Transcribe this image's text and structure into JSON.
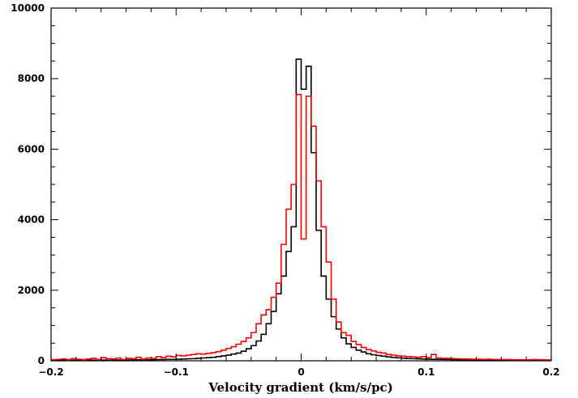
{
  "chart_data": {
    "type": "line",
    "title": "",
    "xlabel": "Velocity gradient (km/s/pc)",
    "ylabel": "",
    "xlim": [
      -0.2,
      0.2
    ],
    "ylim": [
      0,
      10000
    ],
    "x_ticks": [
      -0.2,
      -0.1,
      0,
      0.1,
      0.2
    ],
    "x_tick_labels": [
      "−0.2",
      "−0.1",
      "0",
      "0.1",
      "0.2"
    ],
    "y_ticks": [
      0,
      2000,
      4000,
      6000,
      8000,
      10000
    ],
    "y_tick_labels": [
      "0",
      "2000",
      "4000",
      "6000",
      "8000",
      "10000"
    ],
    "grid": false,
    "legend": "none",
    "bin_width": 0.004,
    "series": [
      {
        "color": "#000000",
        "x": [
          -0.2,
          -0.196,
          -0.192,
          -0.188,
          -0.184,
          -0.18,
          -0.176,
          -0.172,
          -0.168,
          -0.164,
          -0.16,
          -0.156,
          -0.152,
          -0.148,
          -0.144,
          -0.14,
          -0.136,
          -0.132,
          -0.128,
          -0.124,
          -0.12,
          -0.116,
          -0.112,
          -0.108,
          -0.104,
          -0.1,
          -0.096,
          -0.092,
          -0.088,
          -0.084,
          -0.08,
          -0.076,
          -0.072,
          -0.068,
          -0.064,
          -0.06,
          -0.056,
          -0.052,
          -0.048,
          -0.044,
          -0.04,
          -0.036,
          -0.032,
          -0.028,
          -0.024,
          -0.02,
          -0.016,
          -0.012,
          -0.008,
          -0.004,
          0,
          0.004,
          0.008,
          0.012,
          0.016,
          0.02,
          0.024,
          0.028,
          0.032,
          0.036,
          0.04,
          0.044,
          0.048,
          0.052,
          0.056,
          0.06,
          0.064,
          0.068,
          0.072,
          0.076,
          0.08,
          0.084,
          0.088,
          0.092,
          0.096,
          0.1,
          0.104,
          0.108,
          0.112,
          0.116,
          0.12,
          0.124,
          0.128,
          0.132,
          0.136,
          0.14,
          0.144,
          0.148,
          0.152,
          0.156,
          0.16,
          0.164,
          0.168,
          0.172,
          0.176,
          0.18,
          0.184,
          0.188,
          0.192,
          0.196
        ],
        "values": [
          15,
          15,
          15,
          15,
          15,
          15,
          20,
          20,
          20,
          20,
          20,
          20,
          20,
          25,
          25,
          25,
          25,
          30,
          30,
          30,
          30,
          35,
          35,
          40,
          40,
          45,
          50,
          55,
          60,
          70,
          80,
          90,
          100,
          120,
          140,
          160,
          190,
          220,
          270,
          340,
          430,
          560,
          750,
          1050,
          1400,
          1900,
          2400,
          3100,
          3800,
          8550,
          7700,
          8350,
          5900,
          3700,
          2400,
          1750,
          1250,
          900,
          650,
          480,
          380,
          300,
          250,
          200,
          170,
          150,
          130,
          110,
          95,
          85,
          75,
          65,
          60,
          55,
          50,
          45,
          42,
          40,
          38,
          35,
          33,
          30,
          28,
          26,
          25,
          24,
          23,
          22,
          21,
          20,
          19,
          18,
          17,
          17,
          16,
          16,
          15,
          15,
          15,
          15
        ]
      },
      {
        "color": "#ff0000",
        "x": [
          -0.2,
          -0.196,
          -0.192,
          -0.188,
          -0.184,
          -0.18,
          -0.176,
          -0.172,
          -0.168,
          -0.164,
          -0.16,
          -0.156,
          -0.152,
          -0.148,
          -0.144,
          -0.14,
          -0.136,
          -0.132,
          -0.128,
          -0.124,
          -0.12,
          -0.116,
          -0.112,
          -0.108,
          -0.104,
          -0.1,
          -0.096,
          -0.092,
          -0.088,
          -0.084,
          -0.08,
          -0.076,
          -0.072,
          -0.068,
          -0.064,
          -0.06,
          -0.056,
          -0.052,
          -0.048,
          -0.044,
          -0.04,
          -0.036,
          -0.032,
          -0.028,
          -0.024,
          -0.02,
          -0.016,
          -0.012,
          -0.008,
          -0.004,
          0,
          0.004,
          0.008,
          0.012,
          0.016,
          0.02,
          0.024,
          0.028,
          0.032,
          0.036,
          0.04,
          0.044,
          0.048,
          0.052,
          0.056,
          0.06,
          0.064,
          0.068,
          0.072,
          0.076,
          0.08,
          0.084,
          0.088,
          0.092,
          0.096,
          0.1,
          0.104,
          0.108,
          0.112,
          0.116,
          0.12,
          0.124,
          0.128,
          0.132,
          0.136,
          0.14,
          0.144,
          0.148,
          0.152,
          0.156,
          0.16,
          0.164,
          0.168,
          0.172,
          0.176,
          0.18,
          0.184,
          0.188,
          0.192,
          0.196
        ],
        "values": [
          30,
          40,
          50,
          35,
          60,
          45,
          30,
          50,
          70,
          40,
          90,
          60,
          50,
          80,
          40,
          70,
          60,
          100,
          50,
          80,
          70,
          120,
          90,
          130,
          110,
          150,
          140,
          160,
          180,
          200,
          190,
          210,
          230,
          260,
          300,
          350,
          400,
          470,
          550,
          650,
          800,
          1050,
          1300,
          1450,
          1800,
          2200,
          3300,
          4300,
          5000,
          7550,
          3450,
          7500,
          6650,
          5100,
          3800,
          2800,
          1750,
          1100,
          800,
          720,
          550,
          460,
          380,
          320,
          280,
          240,
          220,
          180,
          160,
          140,
          130,
          120,
          110,
          100,
          120,
          90,
          180,
          80,
          70,
          70,
          60,
          55,
          50,
          50,
          45,
          45,
          40,
          45,
          40,
          35,
          35,
          35,
          30,
          30,
          30,
          30,
          35,
          30,
          30,
          25
        ]
      }
    ]
  }
}
